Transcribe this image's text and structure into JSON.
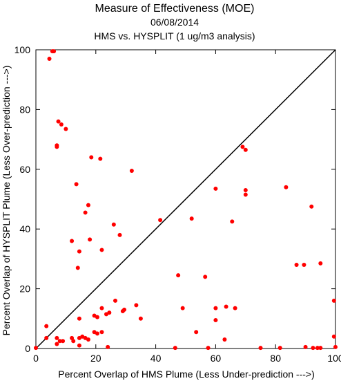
{
  "chart_data": {
    "type": "scatter",
    "title": "Measure of Effectiveness (MOE)",
    "date": "06/08/2014",
    "subtitle": "HMS vs. HYSPLIT  (1 ug/m3 analysis)",
    "xlabel": "Percent Overlap of HMS Plume (Less Under-prediction --->)",
    "ylabel": "Percent Overlap of HYSPLIT Plume (Less Over-prediction --->)",
    "xlim": [
      0,
      100
    ],
    "ylim": [
      0,
      100
    ],
    "xticks": [
      "0",
      "20",
      "40",
      "60",
      "80",
      "100"
    ],
    "yticks": [
      "0",
      "20",
      "40",
      "60",
      "80",
      "100"
    ],
    "grid": false,
    "reference_line": "y = x",
    "point_color": "#ff0000",
    "points": [
      [
        5.5,
        99.5
      ],
      [
        6,
        99.5
      ],
      [
        4.5,
        97
      ],
      [
        7.5,
        76
      ],
      [
        8.5,
        75
      ],
      [
        10,
        73.5
      ],
      [
        7,
        68
      ],
      [
        7,
        67.5
      ],
      [
        18.5,
        64
      ],
      [
        21.5,
        63.5
      ],
      [
        32,
        59.5
      ],
      [
        13.5,
        55
      ],
      [
        17.5,
        48
      ],
      [
        16.5,
        45.5
      ],
      [
        26,
        41.5
      ],
      [
        28,
        38
      ],
      [
        18,
        36.5
      ],
      [
        12,
        36
      ],
      [
        14.5,
        32.5
      ],
      [
        22,
        33
      ],
      [
        14,
        27
      ],
      [
        41.5,
        43
      ],
      [
        52,
        43.5
      ],
      [
        60,
        53.5
      ],
      [
        70,
        53
      ],
      [
        70,
        51.5
      ],
      [
        69,
        67.5
      ],
      [
        70,
        66.5
      ],
      [
        83.5,
        54
      ],
      [
        92,
        47.5
      ],
      [
        65.5,
        42.5
      ],
      [
        47.5,
        24.5
      ],
      [
        56.5,
        24
      ],
      [
        87,
        28
      ],
      [
        89.5,
        28
      ],
      [
        95,
        28.5
      ],
      [
        99.5,
        16
      ],
      [
        3.5,
        7.5
      ],
      [
        3.5,
        3.5
      ],
      [
        7,
        3.5
      ],
      [
        8,
        2.5
      ],
      [
        9,
        2.5
      ],
      [
        7,
        1.5
      ],
      [
        0,
        0.2
      ],
      [
        12,
        3.5
      ],
      [
        12.5,
        2.5
      ],
      [
        14.5,
        3.5
      ],
      [
        15.5,
        4
      ],
      [
        16.5,
        3.5
      ],
      [
        17.5,
        3
      ],
      [
        19.5,
        5.5
      ],
      [
        20.5,
        5
      ],
      [
        22,
        5.5
      ],
      [
        14.5,
        1
      ],
      [
        14.5,
        10
      ],
      [
        19.5,
        11
      ],
      [
        20.5,
        10.5
      ],
      [
        22,
        13.5
      ],
      [
        23.5,
        11.5
      ],
      [
        24.5,
        12
      ],
      [
        26.5,
        16
      ],
      [
        29,
        12.5
      ],
      [
        29.5,
        13
      ],
      [
        33.5,
        14.5
      ],
      [
        35,
        10
      ],
      [
        24,
        0.5
      ],
      [
        49,
        13.5
      ],
      [
        53.5,
        5.5
      ],
      [
        60,
        13.5
      ],
      [
        60,
        9.5
      ],
      [
        63.5,
        14
      ],
      [
        66.5,
        13.5
      ],
      [
        63,
        3
      ],
      [
        46.5,
        0.2
      ],
      [
        57.5,
        0.2
      ],
      [
        75,
        0.2
      ],
      [
        81.5,
        0.2
      ],
      [
        90,
        0.5
      ],
      [
        92.5,
        0.2
      ],
      [
        94,
        0.2
      ],
      [
        95,
        0.2
      ],
      [
        99.5,
        4
      ],
      [
        100,
        0.5
      ]
    ]
  }
}
